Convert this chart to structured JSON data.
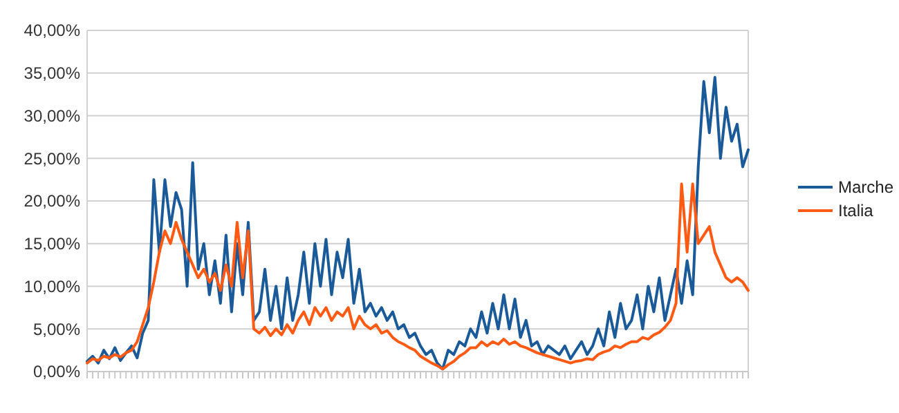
{
  "chart_data": {
    "type": "line",
    "categories": [
      null,
      null,
      null,
      null,
      null,
      null,
      null,
      null,
      null,
      null,
      null,
      null,
      null,
      null,
      null,
      null,
      null,
      null,
      null,
      null,
      null,
      null,
      null,
      null,
      null,
      null,
      null,
      null,
      null,
      null,
      null,
      null,
      null,
      null,
      null,
      null,
      null,
      null,
      null,
      null,
      null,
      null,
      null,
      null,
      null,
      null,
      null,
      null,
      null,
      null,
      null,
      null,
      null,
      null,
      null,
      null,
      null,
      null,
      null,
      null,
      null,
      null,
      null,
      null,
      null,
      null,
      null,
      null,
      null,
      null,
      null,
      null,
      null,
      null,
      null,
      null,
      null,
      null,
      null,
      null,
      null,
      null,
      null,
      null,
      null,
      null,
      null,
      null,
      null,
      null,
      null,
      null,
      null,
      null,
      null,
      null,
      null,
      null,
      null,
      null,
      null,
      null,
      null,
      null,
      null,
      null,
      null,
      null,
      null,
      null,
      null,
      null,
      null,
      null,
      null,
      null,
      null,
      null,
      null,
      null
    ],
    "series": [
      {
        "name": "Marche",
        "color": "#1a5a99",
        "values": [
          1.2,
          1.8,
          1.0,
          2.5,
          1.5,
          2.8,
          1.3,
          2.2,
          3.0,
          1.6,
          4.5,
          6.0,
          22.5,
          14,
          22.5,
          17,
          21,
          19,
          10,
          24.5,
          12,
          15,
          9,
          13,
          8,
          16,
          7,
          15,
          9,
          17.5,
          6,
          7,
          12,
          6,
          10,
          5,
          11,
          6,
          9,
          14,
          8,
          15,
          10,
          15.5,
          9,
          14,
          11,
          15.5,
          8,
          12,
          7,
          8,
          6.5,
          7.5,
          6,
          7,
          5,
          5.5,
          4,
          4.5,
          3,
          2,
          2.5,
          1,
          0.3,
          2.5,
          2,
          3.5,
          3,
          5,
          4,
          7,
          4.5,
          8,
          5,
          9,
          5,
          8.5,
          4,
          6,
          3,
          3.5,
          2,
          3,
          2.5,
          2,
          3,
          1.5,
          2.5,
          3.5,
          2,
          3,
          5,
          3,
          7,
          4,
          8,
          5,
          6,
          9,
          5,
          10,
          7,
          11,
          6,
          9,
          12,
          8,
          13,
          9,
          24,
          34,
          28,
          34.5,
          25,
          31,
          27,
          29,
          24,
          26
        ]
      },
      {
        "name": "Italia",
        "color": "#ff5a14",
        "values": [
          1.0,
          1.5,
          1.3,
          1.8,
          1.6,
          2.0,
          1.7,
          2.2,
          2.5,
          3.5,
          5.5,
          7.5,
          10.5,
          14,
          16.5,
          15,
          17.5,
          15.5,
          14,
          12.5,
          11,
          12,
          10.5,
          11.5,
          9.5,
          12.5,
          10,
          17.5,
          11,
          16.5,
          5,
          4.5,
          5.2,
          4.2,
          5,
          4.3,
          5.5,
          4.5,
          6,
          7,
          5.5,
          7.5,
          6.5,
          7.5,
          6,
          7,
          6.5,
          7.5,
          5,
          6.5,
          5.5,
          5,
          5.5,
          4.5,
          4.8,
          4,
          3.5,
          3.2,
          2.8,
          2.5,
          1.8,
          1.4,
          1.0,
          0.7,
          0.3,
          0.8,
          1.2,
          1.8,
          2.2,
          2.8,
          2.8,
          3.5,
          3,
          3.5,
          3.2,
          3.8,
          3.2,
          3.5,
          3,
          2.8,
          2.5,
          2.2,
          2,
          1.8,
          1.6,
          1.4,
          1.2,
          1.0,
          1.2,
          1.3,
          1.5,
          1.4,
          2,
          2.3,
          2.5,
          3,
          2.8,
          3.2,
          3.5,
          3.5,
          4,
          3.8,
          4.3,
          4.6,
          5.2,
          6,
          8,
          22,
          14,
          22,
          15,
          16,
          17,
          14,
          12.5,
          11,
          10.5,
          11,
          10.5,
          9.5
        ]
      }
    ],
    "ylim": [
      0,
      40
    ],
    "yticks": [
      {
        "value": 0,
        "label": "0,00%"
      },
      {
        "value": 5,
        "label": "5,00%"
      },
      {
        "value": 10,
        "label": "10,00%"
      },
      {
        "value": 15,
        "label": "15,00%"
      },
      {
        "value": 20,
        "label": "20,00%"
      },
      {
        "value": 25,
        "label": "25,00%"
      },
      {
        "value": 30,
        "label": "30,00%"
      },
      {
        "value": 35,
        "label": "35,00%"
      },
      {
        "value": 40,
        "label": "40,00%"
      }
    ],
    "grid": "y",
    "legend": "right",
    "marker": "none",
    "line_style": "solid"
  }
}
